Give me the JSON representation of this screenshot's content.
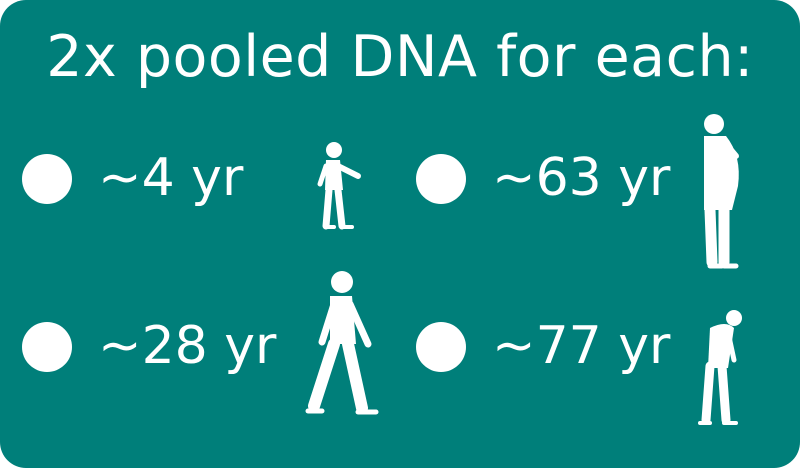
{
  "title": "2x pooled DNA for each:",
  "groups": [
    {
      "label": "~4 yr",
      "icon": "child-walking-icon"
    },
    {
      "label": "~63 yr",
      "icon": "standing-adult-icon"
    },
    {
      "label": "~28 yr",
      "icon": "adult-walking-icon"
    },
    {
      "label": "~77 yr",
      "icon": "elderly-stooped-icon"
    }
  ],
  "colors": {
    "background": "#007f7a",
    "foreground": "#ffffff"
  }
}
